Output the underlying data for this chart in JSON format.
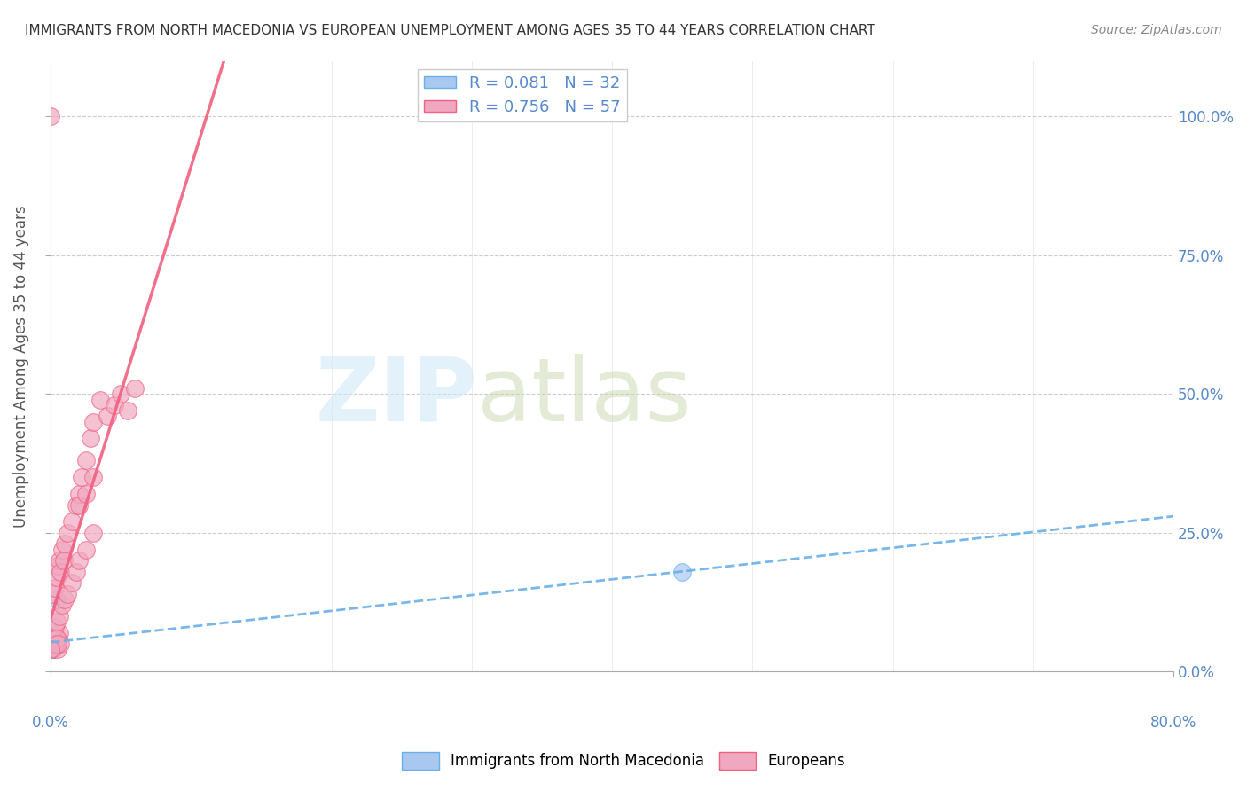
{
  "title": "IMMIGRANTS FROM NORTH MACEDONIA VS EUROPEAN UNEMPLOYMENT AMONG AGES 35 TO 44 YEARS CORRELATION CHART",
  "source": "Source: ZipAtlas.com",
  "xlabel_ticks": [
    "0.0%",
    "80.0%"
  ],
  "ylabel_ticks": [
    "0.0%",
    "25.0%",
    "50.0%",
    "75.0%",
    "100.0%"
  ],
  "ylabel_label": "Unemployment Among Ages 35 to 44 years",
  "legend_label1": "Immigrants from North Macedonia",
  "legend_label2": "Europeans",
  "R1": "0.081",
  "N1": "32",
  "R2": "0.756",
  "N2": "57",
  "blue_color": "#a8c8f0",
  "pink_color": "#f0a8c0",
  "blue_line_color": "#6ab0e8",
  "pink_line_color": "#f06080",
  "title_color": "#333333",
  "axis_label_color": "#5588cc",
  "watermark_color": "#d0e8f8",
  "blue_scatter": {
    "x": [
      0.0,
      0.001,
      0.002,
      0.003,
      0.001,
      0.002,
      0.001,
      0.003,
      0.004,
      0.002,
      0.001,
      0.003,
      0.001,
      0.002,
      0.001,
      0.001,
      0.002,
      0.003,
      0.001,
      0.002,
      0.001,
      0.001,
      0.002,
      0.001,
      0.001,
      0.002,
      0.003,
      0.001,
      0.001,
      0.002,
      0.45,
      0.001
    ],
    "y": [
      0.05,
      0.05,
      0.05,
      0.06,
      0.04,
      0.05,
      0.07,
      0.05,
      0.13,
      0.05,
      0.04,
      0.05,
      0.06,
      0.04,
      0.05,
      0.06,
      0.05,
      0.06,
      0.04,
      0.05,
      0.05,
      0.04,
      0.05,
      0.06,
      0.05,
      0.05,
      0.06,
      0.05,
      0.04,
      0.05,
      0.18,
      0.05
    ]
  },
  "pink_scatter": {
    "x": [
      0.0,
      0.001,
      0.002,
      0.003,
      0.004,
      0.005,
      0.001,
      0.002,
      0.003,
      0.004,
      0.005,
      0.006,
      0.007,
      0.002,
      0.003,
      0.004,
      0.005,
      0.006,
      0.007,
      0.008,
      0.009,
      0.01,
      0.012,
      0.015,
      0.018,
      0.02,
      0.022,
      0.025,
      0.028,
      0.03,
      0.035,
      0.04,
      0.045,
      0.05,
      0.055,
      0.06,
      0.003,
      0.004,
      0.006,
      0.008,
      0.01,
      0.012,
      0.015,
      0.018,
      0.02,
      0.025,
      0.03,
      0.02,
      0.025,
      0.03,
      0.0,
      0.001,
      0.002,
      0.003,
      0.004,
      0.005,
      0.0
    ],
    "y": [
      0.05,
      0.04,
      0.05,
      0.06,
      0.05,
      0.04,
      0.06,
      0.05,
      0.06,
      0.05,
      0.06,
      0.07,
      0.05,
      0.14,
      0.15,
      0.17,
      0.19,
      0.2,
      0.18,
      0.22,
      0.2,
      0.23,
      0.25,
      0.27,
      0.3,
      0.32,
      0.35,
      0.38,
      0.42,
      0.45,
      0.49,
      0.46,
      0.48,
      0.5,
      0.47,
      0.51,
      0.08,
      0.09,
      0.1,
      0.12,
      0.13,
      0.14,
      0.16,
      0.18,
      0.2,
      0.22,
      0.25,
      0.3,
      0.32,
      0.35,
      1.0,
      0.05,
      0.06,
      0.05,
      0.06,
      0.05,
      0.04
    ]
  },
  "xmin": 0.0,
  "xmax": 0.8,
  "ymin": 0.0,
  "ymax": 1.1
}
